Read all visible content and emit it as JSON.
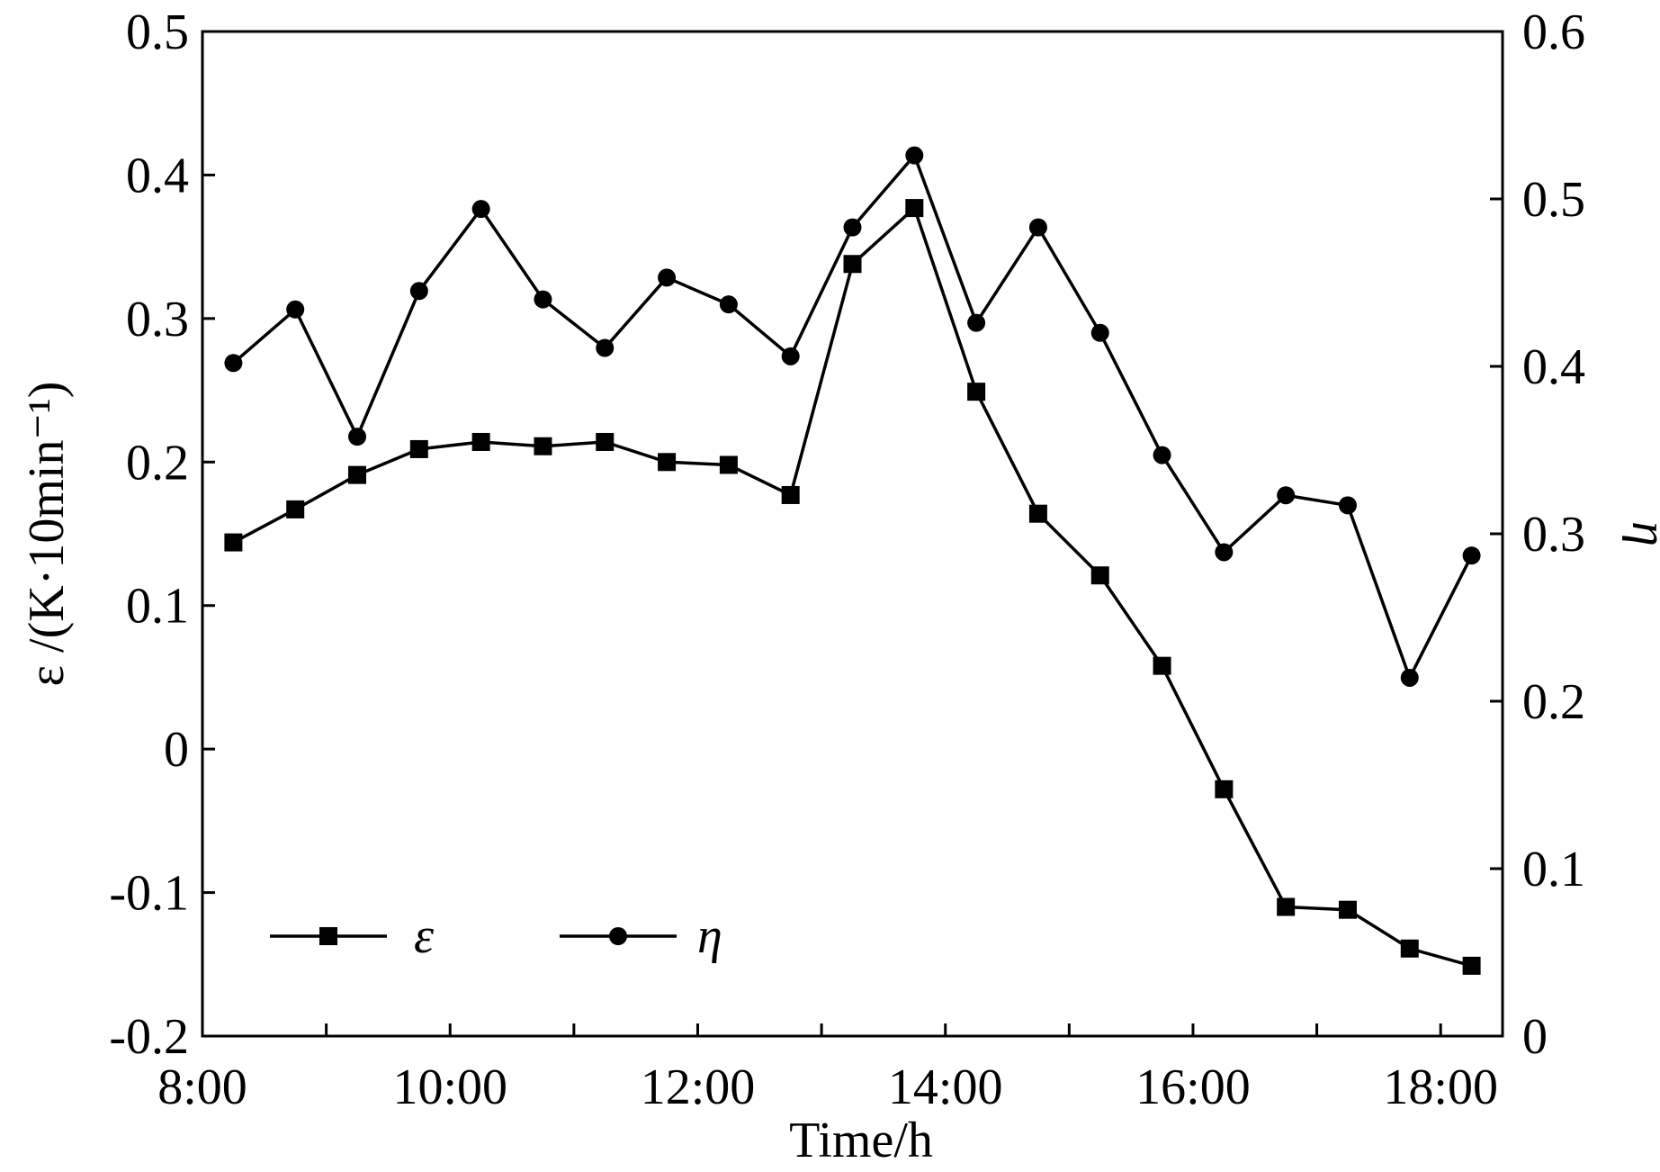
{
  "chart_data": {
    "type": "line",
    "title": "",
    "xlabel": "Time/h",
    "ylabel_left": "ε /(K·10min⁻¹)",
    "ylabel_right": "η",
    "x_ticks": [
      "8:00",
      "10:00",
      "12:00",
      "14:00",
      "16:00",
      "18:00"
    ],
    "x_range_hours": [
      8,
      18.5
    ],
    "x_hours": [
      8.25,
      8.75,
      9.25,
      9.75,
      10.25,
      10.75,
      11.25,
      11.75,
      12.25,
      12.75,
      13.25,
      13.75,
      14.25,
      14.75,
      15.25,
      15.75,
      16.25,
      16.75,
      17.25,
      17.75,
      18.25
    ],
    "ylim_left": [
      -0.2,
      0.5
    ],
    "ylim_right": [
      0,
      0.6
    ],
    "y_ticks_left": [
      "-0.2",
      "-0.1",
      "0",
      "0.1",
      "0.2",
      "0.3",
      "0.4",
      "0.5"
    ],
    "y_ticks_right": [
      "0",
      "0.1",
      "0.2",
      "0.3",
      "0.4",
      "0.5",
      "0.6"
    ],
    "legend_position": "bottom-left",
    "series": [
      {
        "name": "ε",
        "axis": "left",
        "marker": "square",
        "values": [
          0.144,
          0.167,
          0.191,
          0.209,
          0.214,
          0.211,
          0.214,
          0.2,
          0.198,
          0.177,
          0.338,
          0.377,
          0.249,
          0.164,
          0.121,
          0.058,
          -0.028,
          -0.11,
          -0.112,
          -0.139,
          -0.151
        ]
      },
      {
        "name": "η",
        "axis": "right",
        "marker": "circle",
        "values": [
          0.402,
          0.434,
          0.358,
          0.445,
          0.494,
          0.44,
          0.411,
          0.453,
          0.437,
          0.406,
          0.483,
          0.526,
          0.426,
          0.483,
          0.42,
          0.347,
          0.289,
          0.323,
          0.317,
          0.214,
          0.287
        ]
      }
    ]
  }
}
